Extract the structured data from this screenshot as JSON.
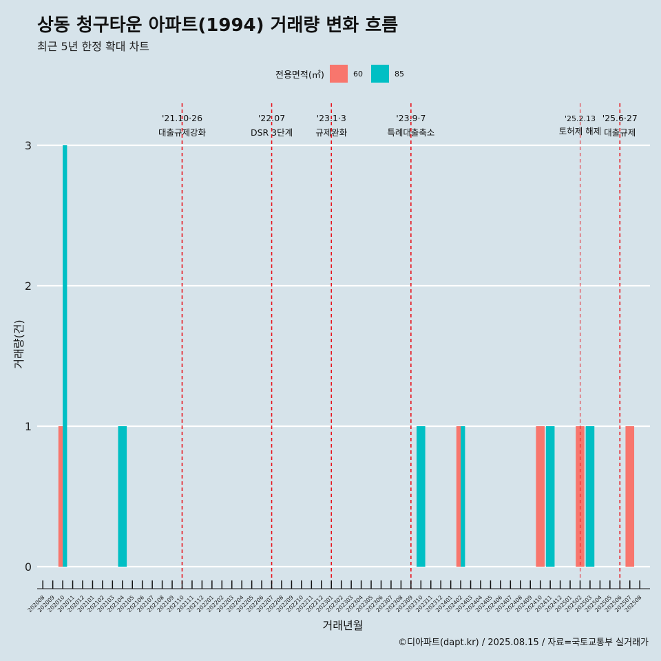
{
  "title": "상동 청구타운 아파트(1994) 거래량 변화 흐름",
  "subtitle": "최근 5년 한정 확대 차트",
  "legend": {
    "title": "전용면적(㎡)",
    "items": [
      {
        "label": "60",
        "color": "#f8766d"
      },
      {
        "label": "85",
        "color": "#00bfc4"
      }
    ]
  },
  "caption": "©디아파트(dapt.kr) / 2025.08.15 / 자료=국토교통부 실거래가",
  "chart_data": {
    "type": "bar",
    "xlabel": "거래년월",
    "ylabel": "거래량(건)",
    "ylim": [
      0,
      3
    ],
    "yticks": [
      0,
      1,
      2,
      3
    ],
    "grid": true,
    "legend_position": "top",
    "categories": [
      "202008",
      "202009",
      "202010",
      "202011",
      "202012",
      "202101",
      "202102",
      "202103",
      "202104",
      "202105",
      "202106",
      "202107",
      "202108",
      "202109",
      "202110",
      "202111",
      "202112",
      "202201",
      "202202",
      "202203",
      "202204",
      "202205",
      "202206",
      "202207",
      "202208",
      "202209",
      "202210",
      "202211",
      "202212",
      "202301",
      "202302",
      "202303",
      "202304",
      "202305",
      "202306",
      "202307",
      "202308",
      "202309",
      "202310",
      "202311",
      "202312",
      "202401",
      "202402",
      "202403",
      "202404",
      "202405",
      "202406",
      "202407",
      "202408",
      "202409",
      "202410",
      "202411",
      "202412",
      "202501",
      "202502",
      "202503",
      "202504",
      "202505",
      "202506",
      "202507",
      "202508"
    ],
    "series": [
      {
        "name": "60",
        "color": "#f8766d",
        "points": [
          {
            "x": "202010",
            "y": 1
          },
          {
            "x": "202402",
            "y": 1
          },
          {
            "x": "202410",
            "y": 1
          },
          {
            "x": "202502",
            "y": 1
          },
          {
            "x": "202507",
            "y": 1
          }
        ]
      },
      {
        "name": "85",
        "color": "#00bfc4",
        "points": [
          {
            "x": "202010",
            "y": 3
          },
          {
            "x": "202104",
            "y": 1
          },
          {
            "x": "202310",
            "y": 1
          },
          {
            "x": "202402",
            "y": 1
          },
          {
            "x": "202411",
            "y": 1
          },
          {
            "x": "202503",
            "y": 1
          }
        ]
      }
    ],
    "annotations": [
      {
        "x": "202110",
        "date": "'21.10·26",
        "text": "대출규제강화"
      },
      {
        "x": "202207",
        "date": "'22.07",
        "text": "DSR 3단계"
      },
      {
        "x": "202301",
        "date": "'23.1·3",
        "text": "규제완화"
      },
      {
        "x": "202309",
        "date": "'23.9·7",
        "text": "특례대출축소"
      },
      {
        "x": "202502",
        "date": "'25.2.13",
        "text": "토허제 해제"
      },
      {
        "x": "202506",
        "date": "'25.6·27",
        "text": "대출규제"
      }
    ]
  }
}
